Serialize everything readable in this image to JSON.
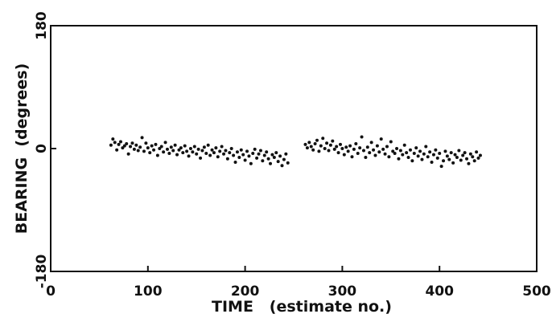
{
  "chart_data": {
    "type": "scatter",
    "xlabel": "TIME   (estimate no.)",
    "ylabel": "BEARING  (degrees)",
    "xlim": [
      0,
      500
    ],
    "ylim": [
      -180,
      180
    ],
    "xticks": [
      "0",
      "100",
      "200",
      "300",
      "400",
      "500"
    ],
    "yticks": [
      "-180",
      "0",
      "180"
    ],
    "grid": false,
    "series": [
      {
        "values": [
          [
            62,
            5
          ],
          [
            64,
            14
          ],
          [
            66,
            9
          ],
          [
            68,
            -2
          ],
          [
            70,
            6
          ],
          [
            72,
            10
          ],
          [
            74,
            1
          ],
          [
            76,
            4
          ],
          [
            78,
            7
          ],
          [
            80,
            -8
          ],
          [
            82,
            3
          ],
          [
            84,
            8
          ],
          [
            86,
            -1
          ],
          [
            88,
            5
          ],
          [
            90,
            -3
          ],
          [
            92,
            2
          ],
          [
            94,
            16
          ],
          [
            96,
            -4
          ],
          [
            98,
            8
          ],
          [
            100,
            1
          ],
          [
            102,
            -6
          ],
          [
            104,
            4
          ],
          [
            106,
            -2
          ],
          [
            108,
            6
          ],
          [
            110,
            -10
          ],
          [
            112,
            0
          ],
          [
            114,
            3
          ],
          [
            116,
            -5
          ],
          [
            118,
            9
          ],
          [
            120,
            -1
          ],
          [
            122,
            -7
          ],
          [
            124,
            2
          ],
          [
            126,
            -3
          ],
          [
            128,
            5
          ],
          [
            130,
            -9
          ],
          [
            132,
            -2
          ],
          [
            134,
            1
          ],
          [
            136,
            -6
          ],
          [
            138,
            4
          ],
          [
            140,
            -4
          ],
          [
            142,
            -11
          ],
          [
            144,
            0
          ],
          [
            146,
            -5
          ],
          [
            148,
            3
          ],
          [
            150,
            -8
          ],
          [
            152,
            -1
          ],
          [
            154,
            -14
          ],
          [
            156,
            -3
          ],
          [
            158,
            2
          ],
          [
            160,
            -7
          ],
          [
            162,
            5
          ],
          [
            164,
            -10
          ],
          [
            166,
            -2
          ],
          [
            168,
            -6
          ],
          [
            170,
            1
          ],
          [
            172,
            -12
          ],
          [
            174,
            -4
          ],
          [
            176,
            3
          ],
          [
            178,
            -8
          ],
          [
            180,
            -3
          ],
          [
            182,
            -15
          ],
          [
            184,
            -6
          ],
          [
            186,
            0
          ],
          [
            188,
            -10
          ],
          [
            190,
            -20
          ],
          [
            192,
            -5
          ],
          [
            194,
            -13
          ],
          [
            196,
            -2
          ],
          [
            198,
            -9
          ],
          [
            200,
            -17
          ],
          [
            202,
            -4
          ],
          [
            204,
            -11
          ],
          [
            206,
            -22
          ],
          [
            208,
            -7
          ],
          [
            210,
            -1
          ],
          [
            212,
            -14
          ],
          [
            214,
            -8
          ],
          [
            216,
            -3
          ],
          [
            218,
            -18
          ],
          [
            220,
            -10
          ],
          [
            222,
            -5
          ],
          [
            224,
            -15
          ],
          [
            226,
            -22
          ],
          [
            228,
            -9
          ],
          [
            230,
            -13
          ],
          [
            232,
            -6
          ],
          [
            234,
            -19
          ],
          [
            236,
            -11
          ],
          [
            238,
            -25
          ],
          [
            240,
            -16
          ],
          [
            242,
            -8
          ],
          [
            244,
            -21
          ],
          [
            262,
            6
          ],
          [
            264,
            1
          ],
          [
            266,
            9
          ],
          [
            268,
            3
          ],
          [
            270,
            -2
          ],
          [
            272,
            7
          ],
          [
            274,
            12
          ],
          [
            276,
            -4
          ],
          [
            278,
            4
          ],
          [
            280,
            15
          ],
          [
            282,
            0
          ],
          [
            284,
            8
          ],
          [
            286,
            -3
          ],
          [
            288,
            5
          ],
          [
            290,
            11
          ],
          [
            292,
            -1
          ],
          [
            294,
            3
          ],
          [
            296,
            -6
          ],
          [
            298,
            6
          ],
          [
            300,
            0
          ],
          [
            302,
            -9
          ],
          [
            304,
            2
          ],
          [
            306,
            -4
          ],
          [
            308,
            4
          ],
          [
            310,
            -12
          ],
          [
            312,
            -1
          ],
          [
            314,
            7
          ],
          [
            316,
            -7
          ],
          [
            318,
            1
          ],
          [
            320,
            17
          ],
          [
            322,
            -3
          ],
          [
            324,
            -13
          ],
          [
            326,
            2
          ],
          [
            328,
            -6
          ],
          [
            330,
            9
          ],
          [
            332,
            -2
          ],
          [
            334,
            -10
          ],
          [
            336,
            4
          ],
          [
            338,
            -5
          ],
          [
            340,
            14
          ],
          [
            342,
            -1
          ],
          [
            344,
            -8
          ],
          [
            346,
            3
          ],
          [
            348,
            -12
          ],
          [
            350,
            10
          ],
          [
            352,
            -4
          ],
          [
            354,
            -7
          ],
          [
            356,
            0
          ],
          [
            358,
            -15
          ],
          [
            360,
            -3
          ],
          [
            362,
            -9
          ],
          [
            364,
            5
          ],
          [
            366,
            -6
          ],
          [
            368,
            -13
          ],
          [
            370,
            -2
          ],
          [
            372,
            -18
          ],
          [
            374,
            -7
          ],
          [
            376,
            1
          ],
          [
            378,
            -11
          ],
          [
            380,
            -4
          ],
          [
            382,
            -16
          ],
          [
            384,
            -8
          ],
          [
            386,
            3
          ],
          [
            388,
            -12
          ],
          [
            390,
            -5
          ],
          [
            392,
            -20
          ],
          [
            394,
            -9
          ],
          [
            396,
            -2
          ],
          [
            398,
            -14
          ],
          [
            400,
            -7
          ],
          [
            402,
            -26
          ],
          [
            404,
            -18
          ],
          [
            406,
            -4
          ],
          [
            408,
            -11
          ],
          [
            410,
            -16
          ],
          [
            412,
            -6
          ],
          [
            414,
            -21
          ],
          [
            416,
            -9
          ],
          [
            418,
            -13
          ],
          [
            420,
            -3
          ],
          [
            422,
            -17
          ],
          [
            424,
            -10
          ],
          [
            426,
            -6
          ],
          [
            428,
            -15
          ],
          [
            430,
            -22
          ],
          [
            432,
            -8
          ],
          [
            434,
            -12
          ],
          [
            436,
            -18
          ],
          [
            438,
            -5
          ],
          [
            440,
            -14
          ],
          [
            442,
            -10
          ]
        ]
      }
    ]
  }
}
